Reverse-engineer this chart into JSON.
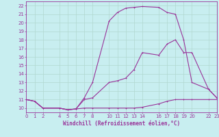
{
  "background_color": "#c8eef0",
  "grid_color": "#b0d8d0",
  "line_color": "#993399",
  "xlabel": "Windchill (Refroidissement éolien,°C)",
  "xlim": [
    0,
    23
  ],
  "ylim": [
    9.5,
    22.5
  ],
  "xticks": [
    0,
    1,
    2,
    4,
    5,
    6,
    7,
    8,
    10,
    11,
    12,
    13,
    14,
    16,
    17,
    18,
    19,
    20,
    22,
    23
  ],
  "yticks": [
    10,
    11,
    12,
    13,
    14,
    15,
    16,
    17,
    18,
    19,
    20,
    21,
    22
  ],
  "line1_x": [
    0,
    1,
    2,
    4,
    5,
    6,
    7,
    8,
    10,
    11,
    12,
    13,
    14,
    16,
    17,
    18,
    19,
    20,
    22,
    23
  ],
  "line1_y": [
    11,
    10.8,
    10,
    10,
    9.8,
    9.9,
    10,
    10,
    10,
    10,
    10,
    10,
    10.1,
    10.5,
    10.8,
    11.0,
    11.0,
    11.0,
    11,
    11
  ],
  "line2_x": [
    0,
    1,
    2,
    4,
    5,
    6,
    7,
    8,
    10,
    11,
    12,
    13,
    14,
    16,
    17,
    18,
    19,
    20,
    22,
    23
  ],
  "line2_y": [
    11,
    10.8,
    10,
    10,
    9.8,
    9.9,
    11.0,
    11.2,
    13.0,
    13.2,
    13.5,
    14.5,
    16.5,
    16.2,
    17.5,
    18.0,
    16.5,
    16.5,
    12.2,
    11.2
  ],
  "line3_x": [
    0,
    1,
    2,
    4,
    5,
    6,
    7,
    8,
    10,
    11,
    12,
    13,
    14,
    16,
    17,
    18,
    19,
    20,
    22,
    23
  ],
  "line3_y": [
    11,
    10.8,
    10,
    10,
    9.8,
    9.9,
    11.2,
    13.0,
    20.2,
    21.2,
    21.7,
    21.8,
    21.9,
    21.8,
    21.2,
    21.0,
    18.0,
    13.0,
    12.2,
    11.2
  ]
}
